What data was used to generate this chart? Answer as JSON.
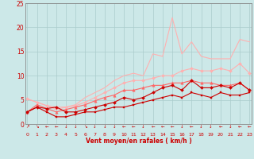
{
  "title": "",
  "xlabel": "Vent moyen/en rafales ( km/h )",
  "bg_color": "#cce8e8",
  "grid_color": "#aacccc",
  "x_ticks": [
    0,
    1,
    2,
    3,
    4,
    5,
    6,
    7,
    8,
    9,
    10,
    11,
    12,
    13,
    14,
    15,
    16,
    17,
    18,
    19,
    20,
    21,
    22,
    23
  ],
  "y_ticks": [
    0,
    5,
    10,
    15,
    20,
    25
  ],
  "xlim": [
    -0.2,
    23.2
  ],
  "ylim": [
    0,
    25
  ],
  "series": [
    {
      "x": [
        0,
        1,
        2,
        3,
        4,
        5,
        6,
        7,
        8,
        9,
        10,
        11,
        12,
        13,
        14,
        15,
        16,
        17,
        18,
        19,
        20,
        21,
        22,
        23
      ],
      "y": [
        5.2,
        4.5,
        3.8,
        3.0,
        3.5,
        4.0,
        5.5,
        6.5,
        7.5,
        9.0,
        10.0,
        10.5,
        10.0,
        14.5,
        14.0,
        22.0,
        14.5,
        17.0,
        14.0,
        13.5,
        13.5,
        13.5,
        17.5,
        17.0
      ],
      "color": "#ffb0b0",
      "marker": null,
      "markersize": 0,
      "linewidth": 0.8
    },
    {
      "x": [
        0,
        1,
        2,
        3,
        4,
        5,
        6,
        7,
        8,
        9,
        10,
        11,
        12,
        13,
        14,
        15,
        16,
        17,
        18,
        19,
        20,
        21,
        22,
        23
      ],
      "y": [
        5.2,
        4.5,
        3.8,
        3.5,
        3.5,
        3.8,
        4.5,
        5.5,
        6.5,
        7.5,
        8.5,
        9.0,
        9.0,
        9.5,
        10.0,
        10.0,
        11.0,
        11.5,
        11.0,
        11.0,
        11.5,
        11.0,
        12.5,
        10.5
      ],
      "color": "#ffb0b0",
      "marker": "D",
      "markersize": 2.0,
      "linewidth": 0.8
    },
    {
      "x": [
        0,
        1,
        2,
        3,
        4,
        5,
        6,
        7,
        8,
        9,
        10,
        11,
        12,
        13,
        14,
        15,
        16,
        17,
        18,
        19,
        20,
        21,
        22,
        23
      ],
      "y": [
        2.5,
        4.0,
        3.2,
        2.5,
        3.0,
        3.5,
        4.0,
        4.8,
        5.5,
        6.0,
        7.0,
        7.0,
        7.5,
        8.0,
        8.0,
        8.5,
        8.5,
        9.0,
        8.5,
        8.5,
        8.0,
        8.0,
        8.5,
        7.0
      ],
      "color": "#ff6666",
      "marker": "^",
      "markersize": 2.5,
      "linewidth": 0.8
    },
    {
      "x": [
        0,
        1,
        2,
        3,
        4,
        5,
        6,
        7,
        8,
        9,
        10,
        11,
        12,
        13,
        14,
        15,
        16,
        17,
        18,
        19,
        20,
        21,
        22,
        23
      ],
      "y": [
        2.5,
        3.5,
        3.2,
        3.5,
        2.5,
        2.5,
        3.0,
        3.5,
        4.0,
        4.5,
        5.5,
        5.0,
        5.5,
        6.5,
        7.5,
        8.0,
        7.0,
        9.0,
        7.5,
        7.5,
        8.0,
        7.5,
        8.5,
        7.0
      ],
      "color": "#cc0000",
      "marker": "D",
      "markersize": 2.0,
      "linewidth": 0.8
    },
    {
      "x": [
        0,
        1,
        2,
        3,
        4,
        5,
        6,
        7,
        8,
        9,
        10,
        11,
        12,
        13,
        14,
        15,
        16,
        17,
        18,
        19,
        20,
        21,
        22,
        23
      ],
      "y": [
        2.5,
        3.5,
        2.5,
        1.5,
        1.5,
        2.0,
        2.5,
        2.5,
        3.0,
        3.5,
        3.5,
        4.0,
        4.5,
        5.0,
        5.5,
        6.0,
        5.5,
        6.5,
        6.0,
        5.5,
        6.5,
        6.0,
        6.0,
        6.5
      ],
      "color": "#cc0000",
      "marker": "s",
      "markersize": 2.0,
      "linewidth": 0.8
    }
  ],
  "arrow_chars": [
    "↗",
    "↘",
    "←",
    "←",
    "↓",
    "↓",
    "↘",
    "↓",
    "↓",
    "↓",
    "←",
    "←",
    "↓",
    "←",
    "←",
    "←",
    "↓",
    "←",
    "↓",
    "↓",
    "←",
    "↓",
    "←",
    "←"
  ]
}
